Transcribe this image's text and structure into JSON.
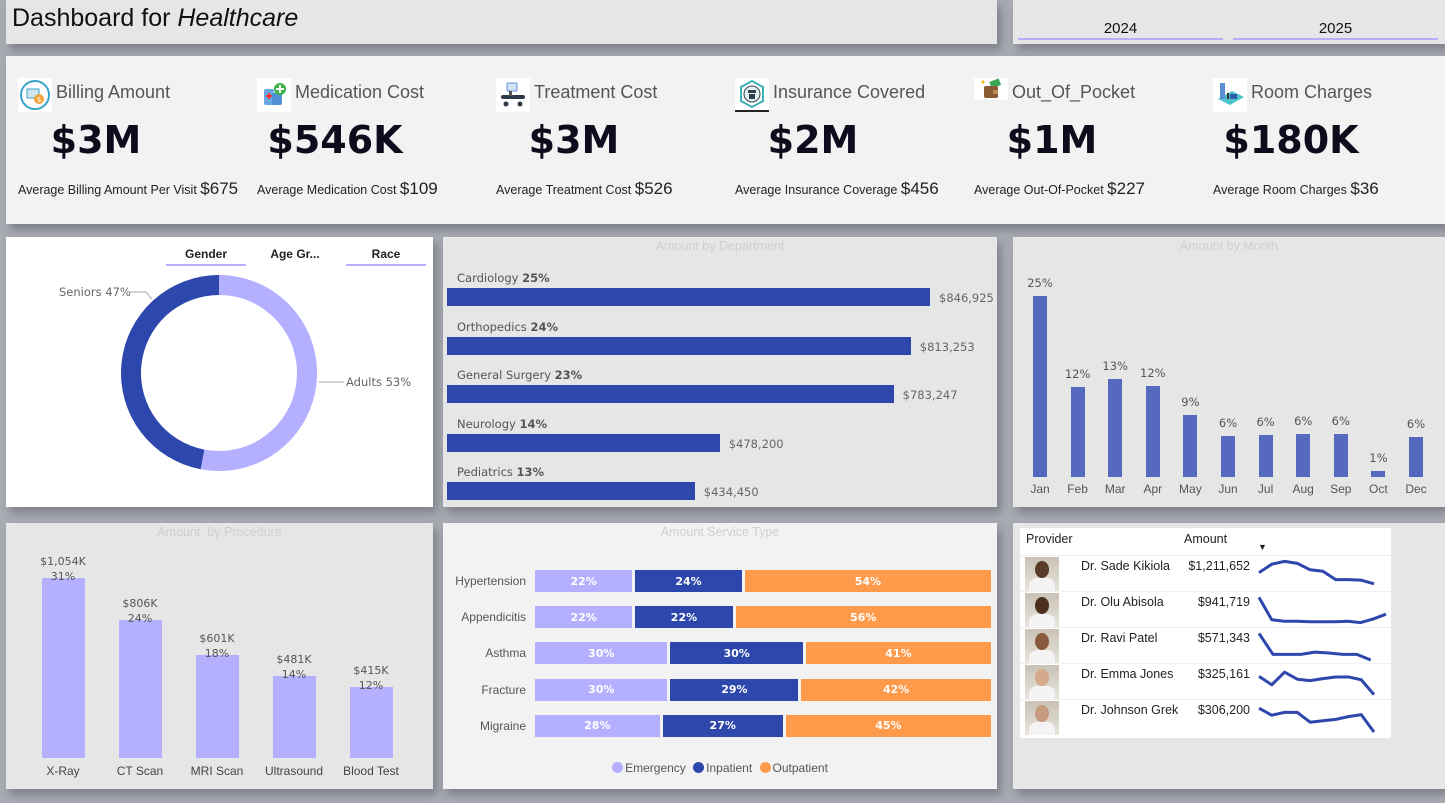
{
  "header": {
    "title_plain": "Dashboard for ",
    "title_italic": "Healthcare",
    "years": [
      "2024",
      "2025"
    ]
  },
  "kpis": [
    {
      "label": "Billing Amount",
      "icon": "billing-icon",
      "value": "$3M",
      "avg_label": "Average Billing Amount Per Visit",
      "avg_value": "$675"
    },
    {
      "label": "Medication Cost",
      "icon": "medication-icon",
      "value": "$546K",
      "avg_label": "Average Medication Cost",
      "avg_value": "$109"
    },
    {
      "label": "Treatment Cost",
      "icon": "treatment-icon",
      "value": "$3M",
      "avg_label": "Average Treatment Cost",
      "avg_value": "$526"
    },
    {
      "label": "Insurance Covered",
      "icon": "insurance-icon",
      "value": "$2M",
      "avg_label": "Average Insurance Coverage",
      "avg_value": "$456"
    },
    {
      "label": "Out_Of_Pocket",
      "icon": "wallet-icon",
      "value": "$1M",
      "avg_label": "Average Out-Of-Pocket",
      "avg_value": "$227"
    },
    {
      "label": "Room Charges",
      "icon": "room-icon",
      "value": "$180K",
      "avg_label": "Average Room Charges",
      "avg_value": "$36"
    }
  ],
  "colors": {
    "dark_blue": "#2e47ad",
    "mid_blue": "#556abe",
    "lavender": "#b4afff",
    "orange": "#ff9a4a"
  },
  "chart_data": [
    {
      "type": "pie",
      "variant": "donut",
      "title": "",
      "selector_tabs": [
        "Gender",
        "Age Gr...",
        "Race"
      ],
      "selected_tab": "Age Gr...",
      "slices": [
        {
          "label": "Adults",
          "value": 53,
          "display": "Adults 53%",
          "color": "#b4afff"
        },
        {
          "label": "Seniors",
          "value": 47,
          "display": "Seniors 47%",
          "color": "#2e47ad"
        }
      ]
    },
    {
      "type": "bar",
      "orientation": "horizontal",
      "title": "Amount by Department",
      "categories": [
        "Cardiology",
        "Orthopedics",
        "General Surgery",
        "Neurology",
        "Pediatrics"
      ],
      "values": [
        846925,
        813253,
        783247,
        478200,
        434450
      ],
      "value_labels": [
        "$846,925",
        "$813,253",
        "$783,247",
        "$478,200",
        "$434,450"
      ],
      "percent_labels": [
        "25%",
        "24%",
        "23%",
        "14%",
        "13%"
      ]
    },
    {
      "type": "bar",
      "title": "Amount by Month",
      "categories": [
        "Jan",
        "Feb",
        "Mar",
        "Apr",
        "May",
        "Jun",
        "Jul",
        "Aug",
        "Sep",
        "Oct",
        "Dec"
      ],
      "values": [
        25,
        12,
        13,
        12,
        9,
        6,
        6,
        6,
        6,
        1,
        6
      ],
      "value_labels": [
        "25%",
        "12%",
        "13%",
        "12%",
        "9%",
        "6%",
        "6%",
        "6%",
        "6%",
        "1%",
        "6%"
      ],
      "bar_values_relative": [
        1.0,
        0.495,
        0.54,
        0.505,
        0.345,
        0.225,
        0.23,
        0.235,
        0.24,
        0.035,
        0.22
      ]
    },
    {
      "type": "bar",
      "title": "Amount  by Procedure",
      "categories": [
        "X-Ray",
        "CT Scan",
        "MRI Scan",
        "Ultrasound",
        "Blood Test"
      ],
      "values": [
        1054,
        806,
        601,
        481,
        415
      ],
      "units": "$K",
      "amount_labels": [
        "$1,054K",
        "$806K",
        "$601K",
        "$481K",
        "$415K"
      ],
      "percent_labels": [
        "31%",
        "24%",
        "18%",
        "14%",
        "12%"
      ]
    },
    {
      "type": "bar",
      "variant": "100% stacked horizontal",
      "title": "Amount Service Type",
      "categories": [
        "Hypertension",
        "Appendicitis",
        "Asthma",
        "Fracture",
        "Migraine"
      ],
      "series": [
        {
          "name": "Emergency",
          "color": "#b4afff",
          "values": [
            22,
            22,
            30,
            30,
            28
          ]
        },
        {
          "name": "Inpatient",
          "color": "#2e47ad",
          "values": [
            24,
            22,
            30,
            29,
            27
          ]
        },
        {
          "name": "Outpatient",
          "color": "#ff9a4a",
          "values": [
            54,
            56,
            41,
            42,
            45
          ]
        }
      ],
      "legend": "bottom"
    }
  ],
  "providers": {
    "headers": [
      "Provider",
      "",
      "Amount",
      ""
    ],
    "sort_indicator": "▼",
    "rows": [
      {
        "name": "Dr. Sade Kikiola",
        "amount": "$1,211,652",
        "skin": "#5a3a28",
        "trend": [
          0.55,
          0.85,
          0.95,
          0.88,
          0.65,
          0.6,
          0.3,
          0.3,
          0.28,
          0.15
        ]
      },
      {
        "name": "Dr. Olu Abisola",
        "amount": "$941,719",
        "skin": "#4b3020",
        "trend": [
          0.95,
          0.15,
          0.1,
          0.1,
          0.08,
          0.08,
          0.08,
          0.1,
          0.05,
          0.18,
          0.35
        ]
      },
      {
        "name": "Dr. Ravi Patel",
        "amount": "$571,343",
        "skin": "#8a5a3e",
        "trend": [
          0.95,
          0.2,
          0.2,
          0.2,
          0.28,
          0.25,
          0.2,
          0.2,
          0.0
        ]
      },
      {
        "name": "Dr. Emma Jones",
        "amount": "$325,161",
        "skin": "#d6a98c",
        "trend": [
          0.7,
          0.4,
          0.85,
          0.6,
          0.55,
          0.62,
          0.68,
          0.68,
          0.58,
          0.05
        ]
      },
      {
        "name": "Dr. Johnson Grek",
        "amount": "$306,200",
        "skin": "#c69a7e",
        "trend": [
          0.85,
          0.6,
          0.7,
          0.7,
          0.35,
          0.4,
          0.45,
          0.55,
          0.62,
          0.0
        ]
      }
    ]
  }
}
